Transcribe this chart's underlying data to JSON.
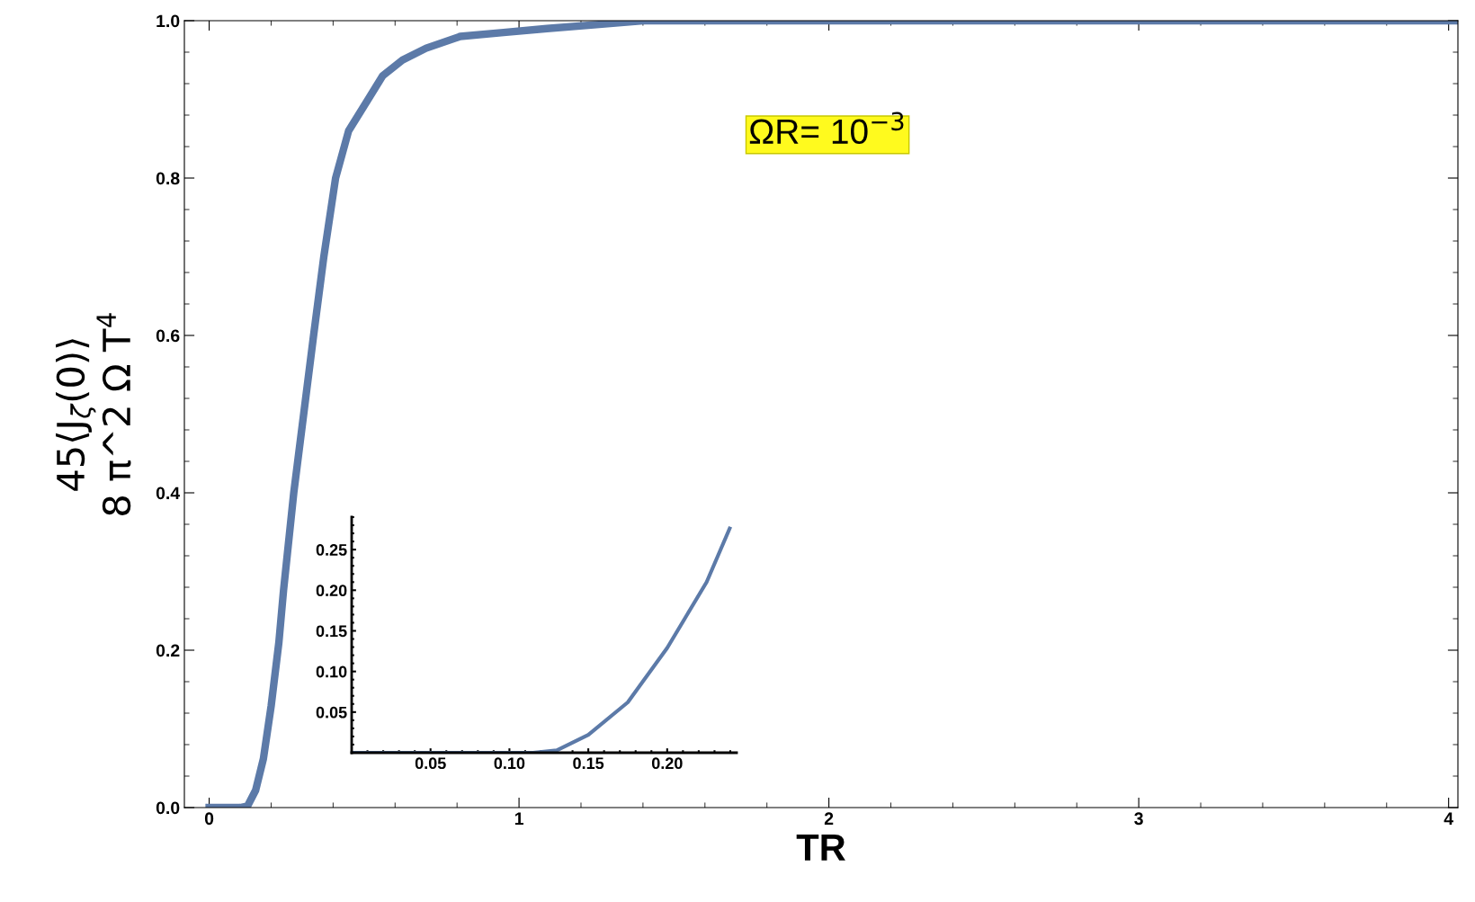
{
  "chart_data": [
    {
      "type": "line",
      "xlabel": "TR",
      "ylabel": "45⟨J$_{ζ}$(0)⟩\n8 π^2 Ω T$^{4}$",
      "annotations": [
        "ΩR= 10$^{−3}$"
      ],
      "series": [
        {
          "color": "#5c7aa8",
          "x": [
            0,
            0.05,
            0.1,
            0.124,
            0.15,
            0.175,
            0.2,
            0.225,
            0.24,
            0.273,
            0.305,
            0.337,
            0.37,
            0.408,
            0.45,
            0.513,
            0.56,
            0.624,
            0.7,
            0.81,
            0.95,
            1.09,
            1.25,
            1.4,
            2,
            3,
            4.03
          ],
          "values": [
            0,
            0,
            0,
            0.002,
            0.022,
            0.062,
            0.129,
            0.21,
            0.276,
            0.4,
            0.5,
            0.6,
            0.7,
            0.8,
            0.86,
            0.9,
            0.93,
            0.95,
            0.965,
            0.98,
            0.985,
            0.99,
            0.995,
            1,
            1,
            1,
            1
          ]
        }
      ],
      "xlim": [
        -0.08,
        4.03
      ],
      "xticks": [
        0,
        1,
        2,
        3,
        4
      ],
      "ylim": [
        0,
        1
      ],
      "yticks": [
        {
          "value": 0,
          "label": "0.0"
        },
        0.2,
        0.4,
        0.6,
        0.8,
        {
          "value": 1,
          "label": "1.0"
        }
      ],
      "grid": false,
      "legend": false,
      "marker": "none",
      "line_style": "solid"
    },
    {
      "type": "line",
      "series": [
        {
          "color": "#5c7aa8",
          "x": [
            0,
            0.05,
            0.1,
            0.115,
            0.13,
            0.15,
            0.175,
            0.2,
            0.225,
            0.2396
          ],
          "values": [
            0,
            0,
            0,
            0,
            0.003,
            0.022,
            0.062,
            0.129,
            0.21,
            0.276
          ]
        }
      ],
      "xlim": [
        0,
        0.244
      ],
      "xticks": [
        0.05,
        {
          "value": 0.1,
          "label": "0.10"
        },
        0.15,
        {
          "value": 0.2,
          "label": "0.20"
        }
      ],
      "ylim": [
        0,
        0.29
      ],
      "yticks": [
        0.05,
        {
          "value": 0.1,
          "label": "0.10"
        },
        0.15,
        {
          "value": 0.2,
          "label": "0.20"
        },
        0.25
      ],
      "grid": false,
      "legend": false,
      "marker": "none",
      "line_style": "solid"
    }
  ]
}
